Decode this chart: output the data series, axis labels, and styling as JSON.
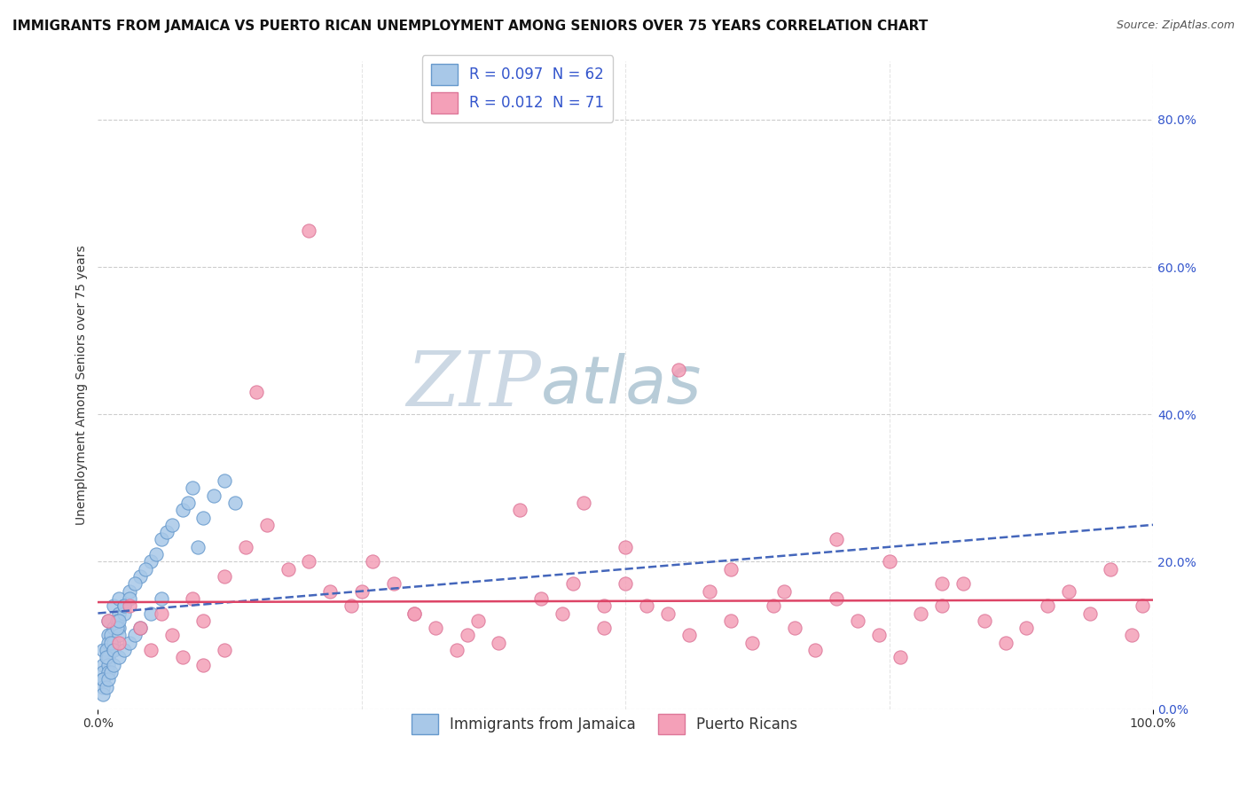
{
  "title": "IMMIGRANTS FROM JAMAICA VS PUERTO RICAN UNEMPLOYMENT AMONG SENIORS OVER 75 YEARS CORRELATION CHART",
  "source": "Source: ZipAtlas.com",
  "ylabel": "Unemployment Among Seniors over 75 years",
  "ytick_labels": [
    "0.0%",
    "20.0%",
    "40.0%",
    "60.0%",
    "80.0%"
  ],
  "ytick_values": [
    0.0,
    0.2,
    0.4,
    0.6,
    0.8
  ],
  "xtick_labels": [
    "0.0%",
    "100.0%"
  ],
  "xtick_values": [
    0.0,
    1.0
  ],
  "xlim": [
    0.0,
    1.0
  ],
  "ylim": [
    0.0,
    0.88
  ],
  "watermark_zip": "ZIP",
  "watermark_atlas": "atlas",
  "watermark_color_zip": "#c8d8e8",
  "watermark_color_atlas": "#b0c8d8",
  "background_color": "#ffffff",
  "grid_color": "#cccccc",
  "title_fontsize": 11,
  "axis_label_fontsize": 10,
  "tick_fontsize": 10,
  "legend_fontsize": 12,
  "jamaica": {
    "N": 62,
    "R": 0.097,
    "scatter_color": "#a8c8e8",
    "scatter_edge": "#6699cc",
    "line_color": "#4466bb",
    "line_style": "dashed",
    "line_y0": 0.13,
    "line_y1": 0.25
  },
  "puertorico": {
    "N": 71,
    "R": 0.012,
    "scatter_color": "#f4a0b8",
    "scatter_edge": "#dd7799",
    "line_color": "#dd4466",
    "line_style": "solid",
    "line_y0": 0.145,
    "line_y1": 0.148
  },
  "jamaica_points": {
    "x": [
      0.01,
      0.01,
      0.005,
      0.015,
      0.02,
      0.005,
      0.01,
      0.02,
      0.015,
      0.01,
      0.005,
      0.008,
      0.012,
      0.018,
      0.025,
      0.005,
      0.01,
      0.015,
      0.02,
      0.01,
      0.005,
      0.015,
      0.02,
      0.01,
      0.008,
      0.012,
      0.025,
      0.018,
      0.015,
      0.005,
      0.03,
      0.04,
      0.035,
      0.05,
      0.045,
      0.03,
      0.055,
      0.06,
      0.025,
      0.02,
      0.065,
      0.07,
      0.08,
      0.085,
      0.09,
      0.095,
      0.1,
      0.11,
      0.12,
      0.13,
      0.005,
      0.008,
      0.01,
      0.012,
      0.015,
      0.02,
      0.025,
      0.03,
      0.035,
      0.04,
      0.05,
      0.06
    ],
    "y": [
      0.12,
      0.1,
      0.08,
      0.14,
      0.15,
      0.06,
      0.09,
      0.13,
      0.11,
      0.07,
      0.05,
      0.08,
      0.1,
      0.12,
      0.14,
      0.04,
      0.07,
      0.09,
      0.11,
      0.06,
      0.03,
      0.08,
      0.1,
      0.05,
      0.07,
      0.09,
      0.13,
      0.11,
      0.08,
      0.04,
      0.16,
      0.18,
      0.17,
      0.2,
      0.19,
      0.15,
      0.21,
      0.23,
      0.14,
      0.12,
      0.24,
      0.25,
      0.27,
      0.28,
      0.3,
      0.22,
      0.26,
      0.29,
      0.31,
      0.28,
      0.02,
      0.03,
      0.04,
      0.05,
      0.06,
      0.07,
      0.08,
      0.09,
      0.1,
      0.11,
      0.13,
      0.15
    ]
  },
  "puertorico_points": {
    "x": [
      0.01,
      0.02,
      0.03,
      0.04,
      0.05,
      0.06,
      0.07,
      0.08,
      0.09,
      0.1,
      0.12,
      0.14,
      0.16,
      0.18,
      0.2,
      0.22,
      0.24,
      0.26,
      0.28,
      0.3,
      0.32,
      0.34,
      0.36,
      0.38,
      0.4,
      0.42,
      0.44,
      0.46,
      0.48,
      0.5,
      0.52,
      0.54,
      0.56,
      0.58,
      0.6,
      0.62,
      0.64,
      0.66,
      0.68,
      0.7,
      0.72,
      0.74,
      0.76,
      0.78,
      0.8,
      0.82,
      0.84,
      0.86,
      0.88,
      0.9,
      0.92,
      0.94,
      0.96,
      0.98,
      0.99,
      0.15,
      0.2,
      0.25,
      0.3,
      0.35,
      0.1,
      0.12,
      0.45,
      0.48,
      0.5,
      0.55,
      0.6,
      0.65,
      0.7,
      0.75,
      0.8
    ],
    "y": [
      0.12,
      0.09,
      0.14,
      0.11,
      0.08,
      0.13,
      0.1,
      0.07,
      0.15,
      0.12,
      0.18,
      0.22,
      0.25,
      0.19,
      0.65,
      0.16,
      0.14,
      0.2,
      0.17,
      0.13,
      0.11,
      0.08,
      0.12,
      0.09,
      0.27,
      0.15,
      0.13,
      0.28,
      0.11,
      0.17,
      0.14,
      0.13,
      0.1,
      0.16,
      0.12,
      0.09,
      0.14,
      0.11,
      0.08,
      0.15,
      0.12,
      0.1,
      0.07,
      0.13,
      0.14,
      0.17,
      0.12,
      0.09,
      0.11,
      0.14,
      0.16,
      0.13,
      0.19,
      0.1,
      0.14,
      0.43,
      0.2,
      0.16,
      0.13,
      0.1,
      0.06,
      0.08,
      0.17,
      0.14,
      0.22,
      0.46,
      0.19,
      0.16,
      0.23,
      0.2,
      0.17
    ]
  }
}
